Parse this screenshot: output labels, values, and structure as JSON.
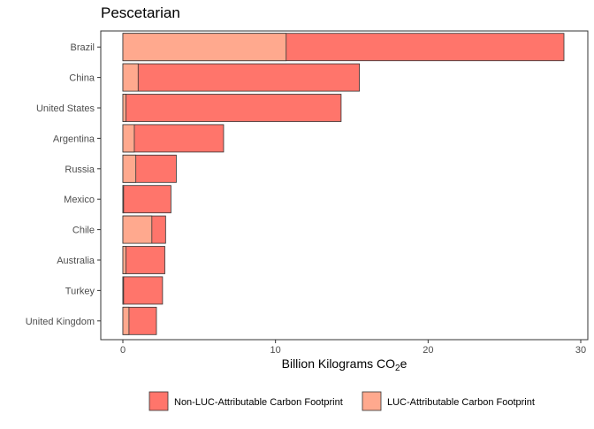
{
  "chart_data": {
    "type": "bar",
    "orientation": "horizontal",
    "stacked": true,
    "title": "Pescetarian",
    "xlabel_main": "Billion Kilograms CO",
    "xlabel_sub": "2",
    "xlabel_tail": "e",
    "ylabel": "",
    "xlim": [
      0,
      30
    ],
    "xticks": [
      "0",
      "10",
      "20",
      "30"
    ],
    "xtick_values": [
      0,
      10,
      20,
      30
    ],
    "categories": [
      "Brazil",
      "China",
      "United States",
      "Argentina",
      "Russia",
      "Mexico",
      "Chile",
      "Australia",
      "Turkey",
      "United Kingdom"
    ],
    "series": [
      {
        "name": "LUC-Attributable Carbon Footprint",
        "color": "#FFA98E",
        "values": [
          10.7,
          1.0,
          0.2,
          0.75,
          0.85,
          0.05,
          1.9,
          0.2,
          0.05,
          0.4
        ]
      },
      {
        "name": "Non-LUC-Attributable Carbon Footprint",
        "color": "#FF756B",
        "values": [
          18.2,
          14.5,
          14.1,
          5.85,
          2.65,
          3.1,
          0.9,
          2.55,
          2.55,
          1.8
        ]
      }
    ],
    "legend": {
      "position": "bottom",
      "order": [
        "Non-LUC-Attributable Carbon Footprint",
        "LUC-Attributable Carbon Footprint"
      ]
    },
    "grid": false
  }
}
